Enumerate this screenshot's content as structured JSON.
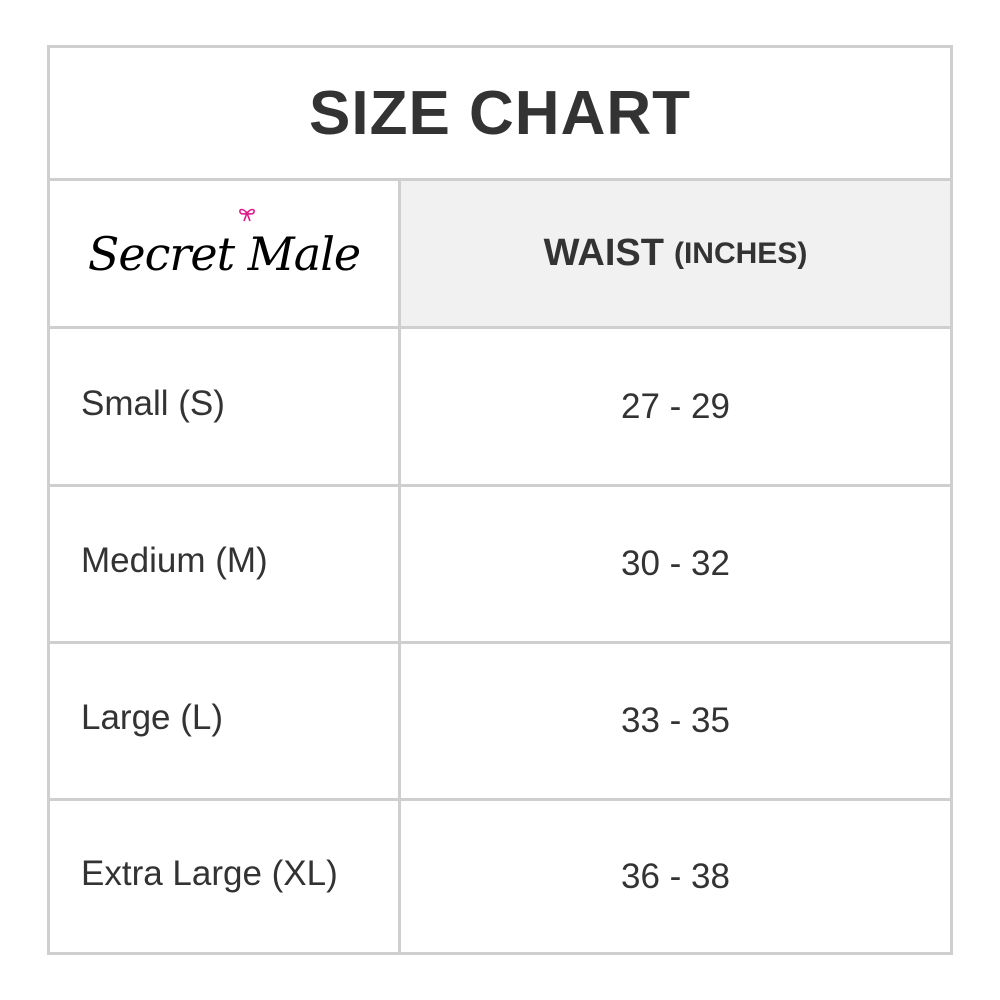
{
  "title": "SIZE CHART",
  "brand": {
    "logo_text": "Secret Male",
    "bow_color": "#e0198a"
  },
  "header": {
    "column": "WAIST",
    "unit": "(INCHES)"
  },
  "rows": [
    {
      "size": "Small (S)",
      "waist": "27 - 29"
    },
    {
      "size": "Medium (M)",
      "waist": "30 - 32"
    },
    {
      "size": "Large (L)",
      "waist": "33 - 35"
    },
    {
      "size": "Extra Large (XL)",
      "waist": "36 - 38"
    }
  ]
}
